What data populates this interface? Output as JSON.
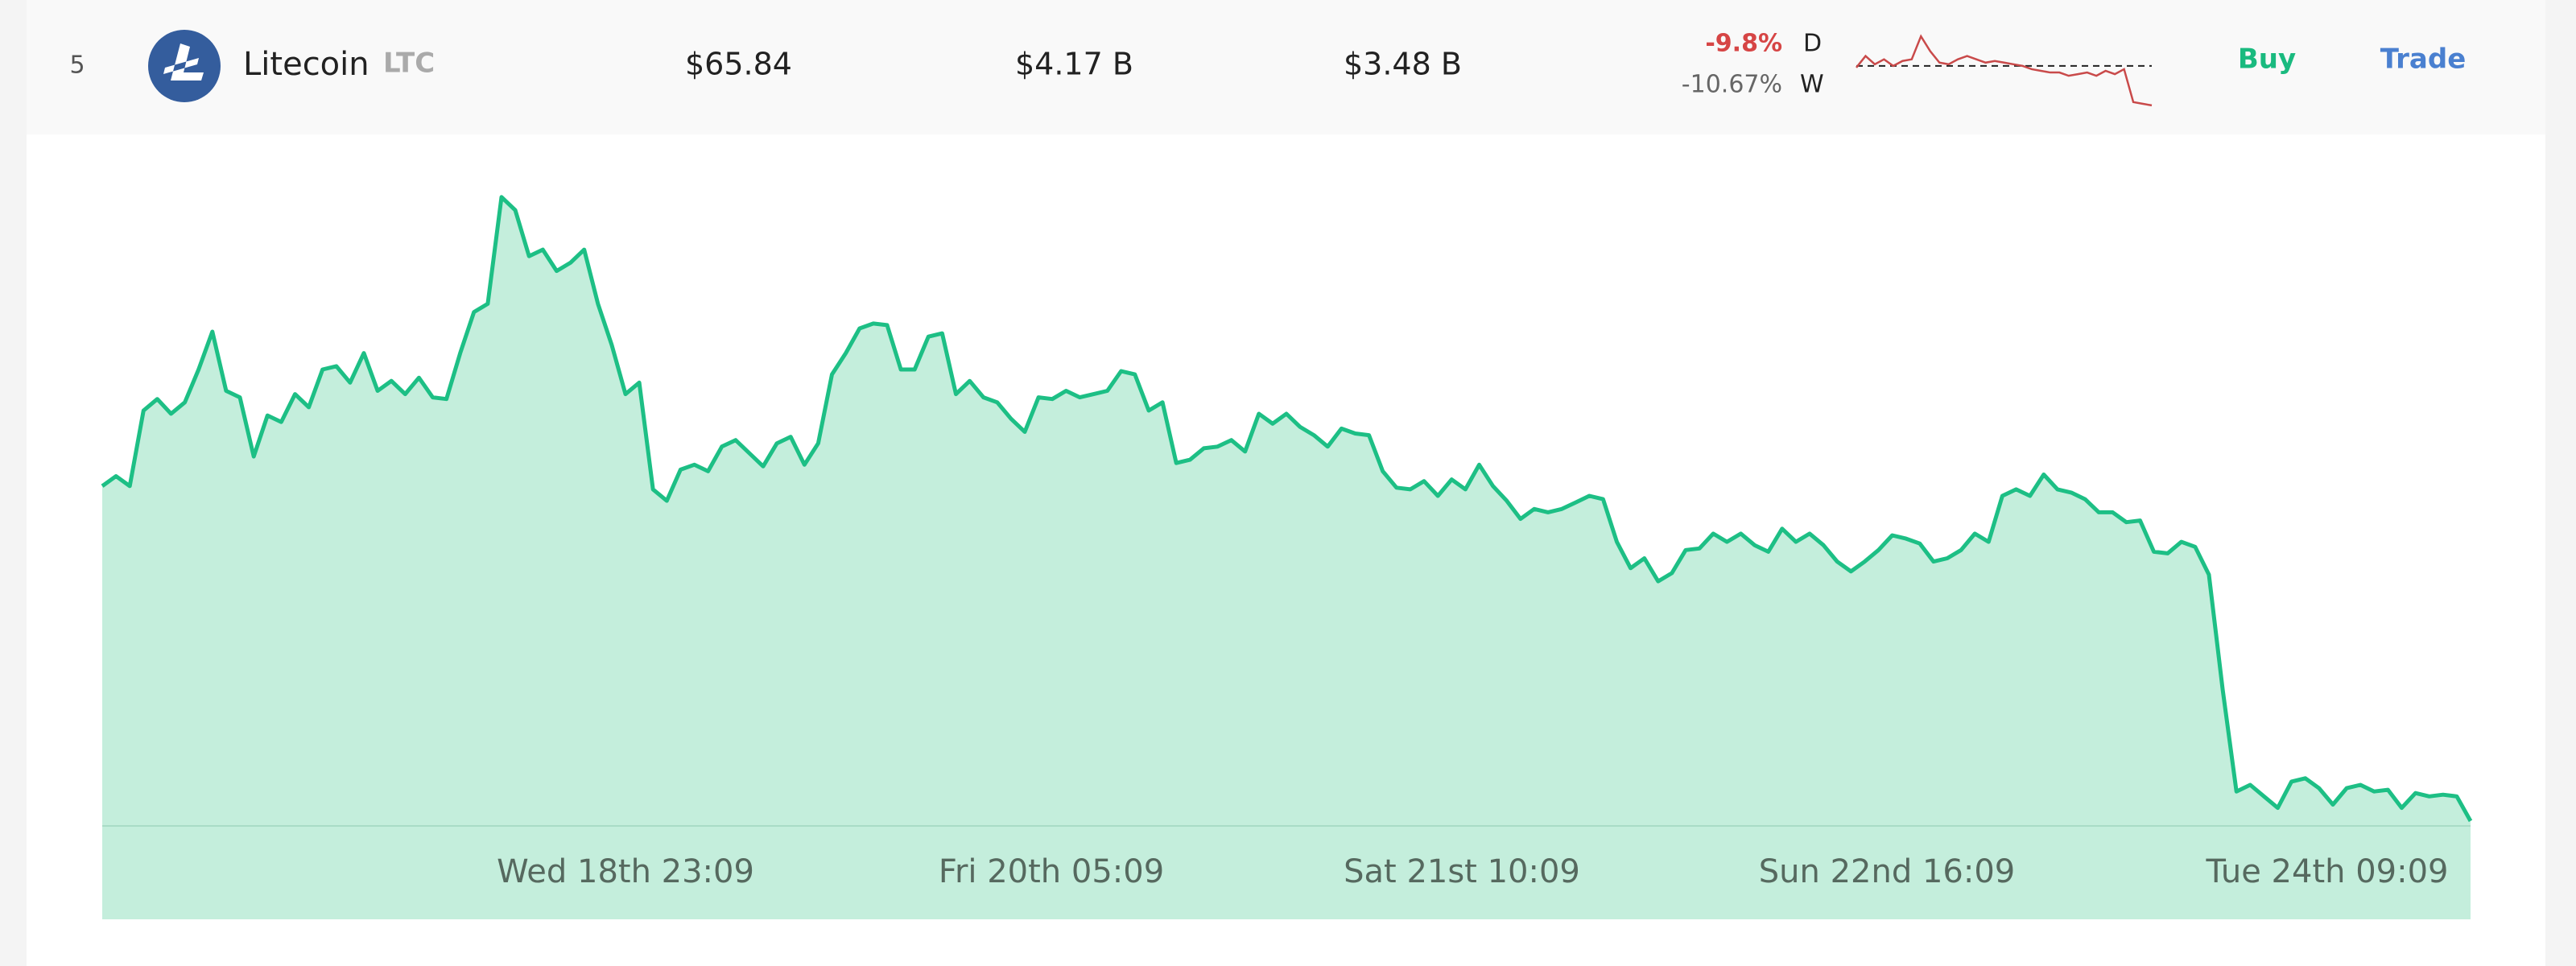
{
  "row": {
    "rank": "5",
    "name": "Litecoin",
    "symbol": "LTC",
    "price": "$65.84",
    "market_cap": "$4.17 B",
    "volume": "$3.48 B",
    "change_day": "-9.8%",
    "day_label": "D",
    "change_week": "-10.67%",
    "week_label": "W",
    "buy": "Buy",
    "trade": "Trade",
    "sparkline": {
      "type": "line",
      "color": "#c94a4a",
      "reference": 26,
      "ylim": [
        0,
        46
      ],
      "values": [
        25,
        32,
        27,
        30,
        26,
        29,
        30,
        44,
        35,
        28,
        27,
        30,
        32,
        30,
        28,
        29,
        28,
        27,
        26,
        24,
        23,
        22,
        22,
        20,
        21,
        22,
        20,
        23,
        21,
        24,
        4,
        3,
        2
      ]
    }
  },
  "chart_data": {
    "type": "area",
    "color": "#1dbf85",
    "fill": "#c4eedc",
    "ylim": [
      0,
      403
    ],
    "xtick_labels": [
      "Wed 18th 23:09",
      "Fri 20th 05:09",
      "Sat 21st 10:09",
      "Sun 22nd 16:09",
      "Tue 24th 09:09"
    ],
    "values": [
      207,
      213,
      207,
      253,
      260,
      251,
      258,
      278,
      301,
      265,
      261,
      225,
      250,
      246,
      263,
      255,
      278,
      280,
      270,
      288,
      265,
      271,
      263,
      273,
      261,
      260,
      288,
      313,
      318,
      383,
      375,
      347,
      351,
      338,
      343,
      351,
      318,
      293,
      263,
      270,
      205,
      198,
      217,
      220,
      216,
      231,
      235,
      227,
      219,
      233,
      237,
      220,
      233,
      275,
      288,
      303,
      306,
      305,
      278,
      278,
      298,
      300,
      263,
      271,
      261,
      258,
      248,
      240,
      261,
      260,
      265,
      261,
      263,
      265,
      277,
      275,
      253,
      258,
      221,
      223,
      230,
      231,
      235,
      228,
      251,
      245,
      251,
      243,
      238,
      231,
      242,
      239,
      238,
      216,
      206,
      205,
      210,
      201,
      211,
      205,
      220,
      207,
      198,
      187,
      193,
      191,
      193,
      197,
      201,
      199,
      173,
      157,
      163,
      149,
      154,
      168,
      169,
      178,
      173,
      178,
      171,
      167,
      181,
      173,
      178,
      171,
      161,
      155,
      161,
      168,
      177,
      175,
      172,
      161,
      163,
      168,
      178,
      173,
      201,
      205,
      201,
      214,
      205,
      203,
      199,
      191,
      191,
      185,
      186,
      167,
      166,
      173,
      170,
      153,
      83,
      21,
      25,
      18,
      11,
      27,
      29,
      23,
      13,
      23,
      25,
      21,
      22,
      11,
      20,
      18,
      19,
      18,
      3
    ]
  }
}
